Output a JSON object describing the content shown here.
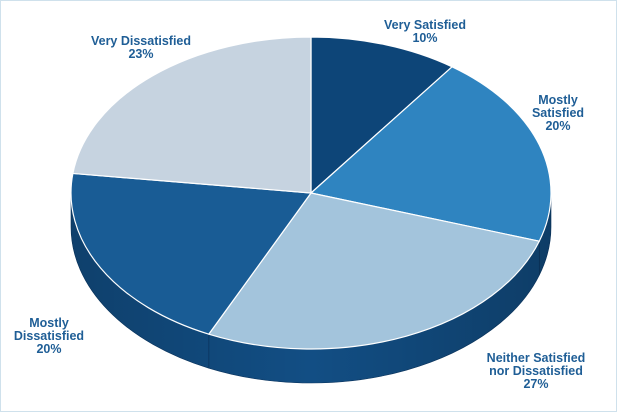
{
  "chart_data": {
    "type": "pie",
    "title": "",
    "slices": [
      {
        "label_lines": [
          "Very Satisfied"
        ],
        "value_label": "10%",
        "value": 10,
        "color": "#0d4578"
      },
      {
        "label_lines": [
          "Mostly",
          "Satisfied"
        ],
        "value_label": "20%",
        "value": 20,
        "color": "#2f84c0"
      },
      {
        "label_lines": [
          "Neither Satisfied",
          "nor Dissatisfied"
        ],
        "value_label": "27%",
        "value": 27,
        "color": "#a3c4dc"
      },
      {
        "label_lines": [
          "Mostly",
          "Dissatisfied"
        ],
        "value_label": "20%",
        "value": 20,
        "color": "#195c95"
      },
      {
        "label_lines": [
          "Very Dissatisfied"
        ],
        "value_label": "23%",
        "value": 23,
        "color": "#c6d3e0"
      }
    ],
    "side_color": "#124e84",
    "side_shadow_color": "#0a3560",
    "label_color": "#1f5e96",
    "border_color": "#cfe1ec"
  }
}
